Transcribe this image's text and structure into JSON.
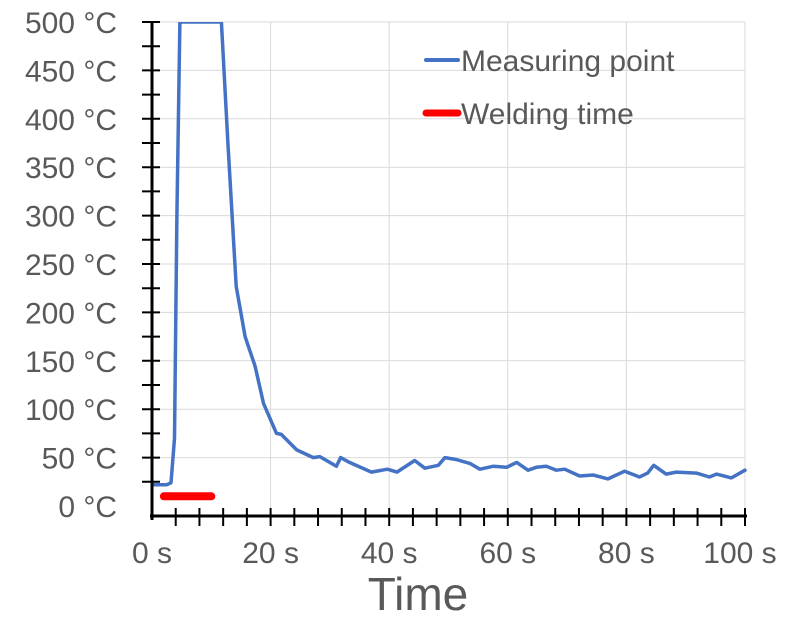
{
  "chart_data": {
    "type": "line",
    "title": "",
    "xlabel": "Time",
    "ylabel": "",
    "xlim": [
      0,
      100
    ],
    "ylim": [
      0,
      500
    ],
    "x_ticks": [
      0,
      20,
      40,
      60,
      80,
      100
    ],
    "x_tick_labels": [
      "0 s",
      "20 s",
      "40 s",
      "60 s",
      "80 s",
      "100 s"
    ],
    "y_ticks": [
      0,
      50,
      100,
      150,
      200,
      250,
      300,
      350,
      400,
      450,
      500
    ],
    "y_tick_labels": [
      "0 °C",
      "50 °C",
      "100 °C",
      "150 °C",
      "200 °C",
      "250 °C",
      "300 °C",
      "350 °C",
      "400 °C",
      "450 °C",
      "500 °C"
    ],
    "grid": true,
    "legend_position": "top-right",
    "series": [
      {
        "name": "Measuring point",
        "color": "#4472C4",
        "x": [
          0,
          2.5,
          3.2,
          3.8,
          4.2,
          4.7,
          11.7,
          12.8,
          14.2,
          15.7,
          17.4,
          18.8,
          21,
          21.8,
          24.4,
          27.2,
          28.3,
          31.1,
          31.8,
          33.3,
          37,
          39.7,
          41.3,
          44.3,
          46,
          48.3,
          49.4,
          51.3,
          53.6,
          55.3,
          57.5,
          59.8,
          61.5,
          63.4,
          64.8,
          66.5,
          68.2,
          69.6,
          72.1,
          74.4,
          76.9,
          79.7,
          82.2,
          83.6,
          84.6,
          86.7,
          88.4,
          91.8,
          94,
          95.2,
          97.7,
          100
        ],
        "y": [
          22,
          22,
          24,
          70,
          300,
          500,
          500,
          375,
          227,
          175,
          144,
          106,
          75,
          74,
          58,
          50,
          51,
          41,
          50,
          45,
          35,
          38,
          35,
          47,
          39,
          42,
          50,
          48,
          44,
          38,
          41,
          40,
          45,
          37,
          40,
          41,
          37,
          38,
          31,
          32,
          28,
          36,
          30,
          34,
          42,
          33,
          35,
          34,
          30,
          33,
          29,
          37
        ]
      },
      {
        "name": "Welding time",
        "color": "#FF0000",
        "x": [
          2,
          10
        ],
        "y": [
          10,
          10
        ]
      }
    ]
  }
}
